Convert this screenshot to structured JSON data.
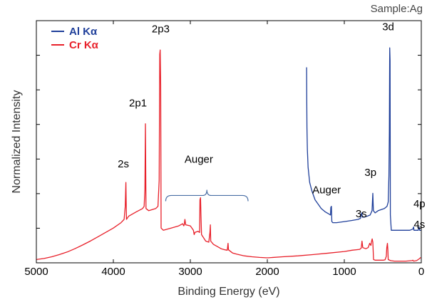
{
  "sample_label": "Sample:Ag",
  "chart_data": {
    "type": "line",
    "title": "",
    "xlabel": "Binding Energy (eV)",
    "ylabel": "Normalized Intensity",
    "xlim": [
      5000,
      0
    ],
    "ylim": [
      0,
      1
    ],
    "x_reversed": true,
    "y_tick_labels": false,
    "x_ticks": [
      5000,
      4000,
      3000,
      2000,
      1000,
      0
    ],
    "x_tick_labels": [
      "5000",
      "4000",
      "3000",
      "2000",
      "1000",
      "0"
    ],
    "legend": {
      "placement": "top-left",
      "entries": [
        "Al Kα",
        "Cr Kα"
      ]
    },
    "series": [
      {
        "name": "Al Kα",
        "color": "#1f3f9a",
        "points": [
          [
            1490,
            0.9
          ],
          [
            1488,
            0.76
          ],
          [
            1485,
            0.62
          ],
          [
            1480,
            0.52
          ],
          [
            1470,
            0.44
          ],
          [
            1450,
            0.37
          ],
          [
            1420,
            0.33
          ],
          [
            1380,
            0.29
          ],
          [
            1340,
            0.27
          ],
          [
            1300,
            0.25
          ],
          [
            1250,
            0.235
          ],
          [
            1200,
            0.225
          ],
          [
            1180,
            0.22
          ],
          [
            1175,
            0.255
          ],
          [
            1168,
            0.26
          ],
          [
            1162,
            0.19
          ],
          [
            1150,
            0.185
          ],
          [
            1100,
            0.185
          ],
          [
            1000,
            0.19
          ],
          [
            900,
            0.195
          ],
          [
            820,
            0.2
          ],
          [
            790,
            0.205
          ],
          [
            775,
            0.23
          ],
          [
            765,
            0.21
          ],
          [
            740,
            0.21
          ],
          [
            700,
            0.215
          ],
          [
            665,
            0.22
          ],
          [
            640,
            0.24
          ],
          [
            630,
            0.32
          ],
          [
            622,
            0.24
          ],
          [
            600,
            0.23
          ],
          [
            560,
            0.24
          ],
          [
            520,
            0.245
          ],
          [
            480,
            0.25
          ],
          [
            445,
            0.26
          ],
          [
            430,
            0.28
          ],
          [
            420,
            0.4
          ],
          [
            415,
            0.6
          ],
          [
            412,
            0.85
          ],
          [
            410,
            0.99
          ],
          [
            406,
            0.93
          ],
          [
            402,
            0.22
          ],
          [
            390,
            0.15
          ],
          [
            350,
            0.15
          ],
          [
            300,
            0.15
          ],
          [
            250,
            0.15
          ],
          [
            200,
            0.15
          ],
          [
            150,
            0.15
          ],
          [
            110,
            0.155
          ],
          [
            100,
            0.165
          ],
          [
            95,
            0.15
          ],
          [
            80,
            0.15
          ],
          [
            60,
            0.15
          ],
          [
            40,
            0.15
          ],
          [
            30,
            0.165
          ],
          [
            20,
            0.15
          ],
          [
            5,
            0.15
          ]
        ]
      },
      {
        "name": "Cr Kα",
        "color": "#e8202a",
        "points": [
          [
            5000,
            0.015
          ],
          [
            4900,
            0.02
          ],
          [
            4800,
            0.028
          ],
          [
            4700,
            0.038
          ],
          [
            4600,
            0.05
          ],
          [
            4500,
            0.065
          ],
          [
            4400,
            0.082
          ],
          [
            4300,
            0.1
          ],
          [
            4200,
            0.12
          ],
          [
            4100,
            0.14
          ],
          [
            4000,
            0.16
          ],
          [
            3900,
            0.185
          ],
          [
            3860,
            0.2
          ],
          [
            3845,
            0.26
          ],
          [
            3837,
            0.37
          ],
          [
            3830,
            0.2
          ],
          [
            3800,
            0.215
          ],
          [
            3700,
            0.235
          ],
          [
            3620,
            0.25
          ],
          [
            3600,
            0.26
          ],
          [
            3590,
            0.34
          ],
          [
            3583,
            0.64
          ],
          [
            3576,
            0.25
          ],
          [
            3540,
            0.24
          ],
          [
            3450,
            0.25
          ],
          [
            3420,
            0.26
          ],
          [
            3405,
            0.38
          ],
          [
            3397,
            0.96
          ],
          [
            3392,
            0.98
          ],
          [
            3385,
            0.82
          ],
          [
            3380,
            0.16
          ],
          [
            3350,
            0.15
          ],
          [
            3300,
            0.155
          ],
          [
            3250,
            0.16
          ],
          [
            3150,
            0.17
          ],
          [
            3100,
            0.18
          ],
          [
            3085,
            0.17
          ],
          [
            3080,
            0.175
          ],
          [
            3070,
            0.2
          ],
          [
            3060,
            0.175
          ],
          [
            3000,
            0.17
          ],
          [
            2960,
            0.15
          ],
          [
            2950,
            0.13
          ],
          [
            2940,
            0.14
          ],
          [
            2900,
            0.145
          ],
          [
            2880,
            0.14
          ],
          [
            2875,
            0.29
          ],
          [
            2868,
            0.3
          ],
          [
            2862,
            0.22
          ],
          [
            2855,
            0.13
          ],
          [
            2800,
            0.1
          ],
          [
            2760,
            0.095
          ],
          [
            2745,
            0.14
          ],
          [
            2740,
            0.175
          ],
          [
            2735,
            0.1
          ],
          [
            2700,
            0.085
          ],
          [
            2650,
            0.075
          ],
          [
            2600,
            0.065
          ],
          [
            2550,
            0.06
          ],
          [
            2520,
            0.058
          ],
          [
            2510,
            0.09
          ],
          [
            2505,
            0.06
          ],
          [
            2450,
            0.045
          ],
          [
            2400,
            0.04
          ],
          [
            2300,
            0.032
          ],
          [
            2200,
            0.028
          ],
          [
            2100,
            0.025
          ],
          [
            2000,
            0.023
          ],
          [
            1800,
            0.028
          ],
          [
            1600,
            0.032
          ],
          [
            1400,
            0.038
          ],
          [
            1200,
            0.045
          ],
          [
            1000,
            0.052
          ],
          [
            900,
            0.058
          ],
          [
            800,
            0.062
          ],
          [
            780,
            0.068
          ],
          [
            770,
            0.1
          ],
          [
            760,
            0.07
          ],
          [
            720,
            0.065
          ],
          [
            690,
            0.07
          ],
          [
            670,
            0.09
          ],
          [
            655,
            0.08
          ],
          [
            645,
            0.1
          ],
          [
            638,
            0.11
          ],
          [
            630,
            0.095
          ],
          [
            620,
            0.015
          ],
          [
            600,
            0.012
          ],
          [
            560,
            0.012
          ],
          [
            520,
            0.012
          ],
          [
            490,
            0.012
          ],
          [
            470,
            0.014
          ],
          [
            455,
            0.03
          ],
          [
            448,
            0.07
          ],
          [
            440,
            0.09
          ],
          [
            434,
            0.06
          ],
          [
            430,
            0.015
          ],
          [
            400,
            0.01
          ],
          [
            350,
            0.008
          ],
          [
            300,
            0.008
          ],
          [
            200,
            0.008
          ],
          [
            120,
            0.01
          ],
          [
            110,
            0.012
          ],
          [
            100,
            0.008
          ],
          [
            60,
            0.01
          ],
          [
            20,
            0.02
          ],
          [
            8,
            0.025
          ]
        ]
      }
    ],
    "annotations": [
      {
        "text": "2p3",
        "x": 3385,
        "y": 1.06,
        "color": "#000000"
      },
      {
        "text": "2p1",
        "x": 3680,
        "y": 0.72,
        "color": "#000000"
      },
      {
        "text": "2s",
        "x": 3870,
        "y": 0.44,
        "color": "#000000"
      },
      {
        "text": "Auger",
        "x": 2890,
        "y": 0.46,
        "color": "#e8202a"
      },
      {
        "text": "3d",
        "x": 430,
        "y": 1.07,
        "color": "#000000"
      },
      {
        "text": "Auger",
        "x": 1230,
        "y": 0.32,
        "color": "#1f3f9a"
      },
      {
        "text": "3p",
        "x": 660,
        "y": 0.4,
        "color": "#000000"
      },
      {
        "text": "3s",
        "x": 780,
        "y": 0.21,
        "color": "#000000"
      },
      {
        "text": "4p",
        "x": 25,
        "y": 0.255,
        "color": "#000000"
      },
      {
        "text": "4s",
        "x": 25,
        "y": 0.16,
        "color": "#000000"
      }
    ],
    "auger_brace": {
      "x_start": 3320,
      "x_end": 2250,
      "y": 0.31,
      "color": "#4a6fa5"
    }
  }
}
